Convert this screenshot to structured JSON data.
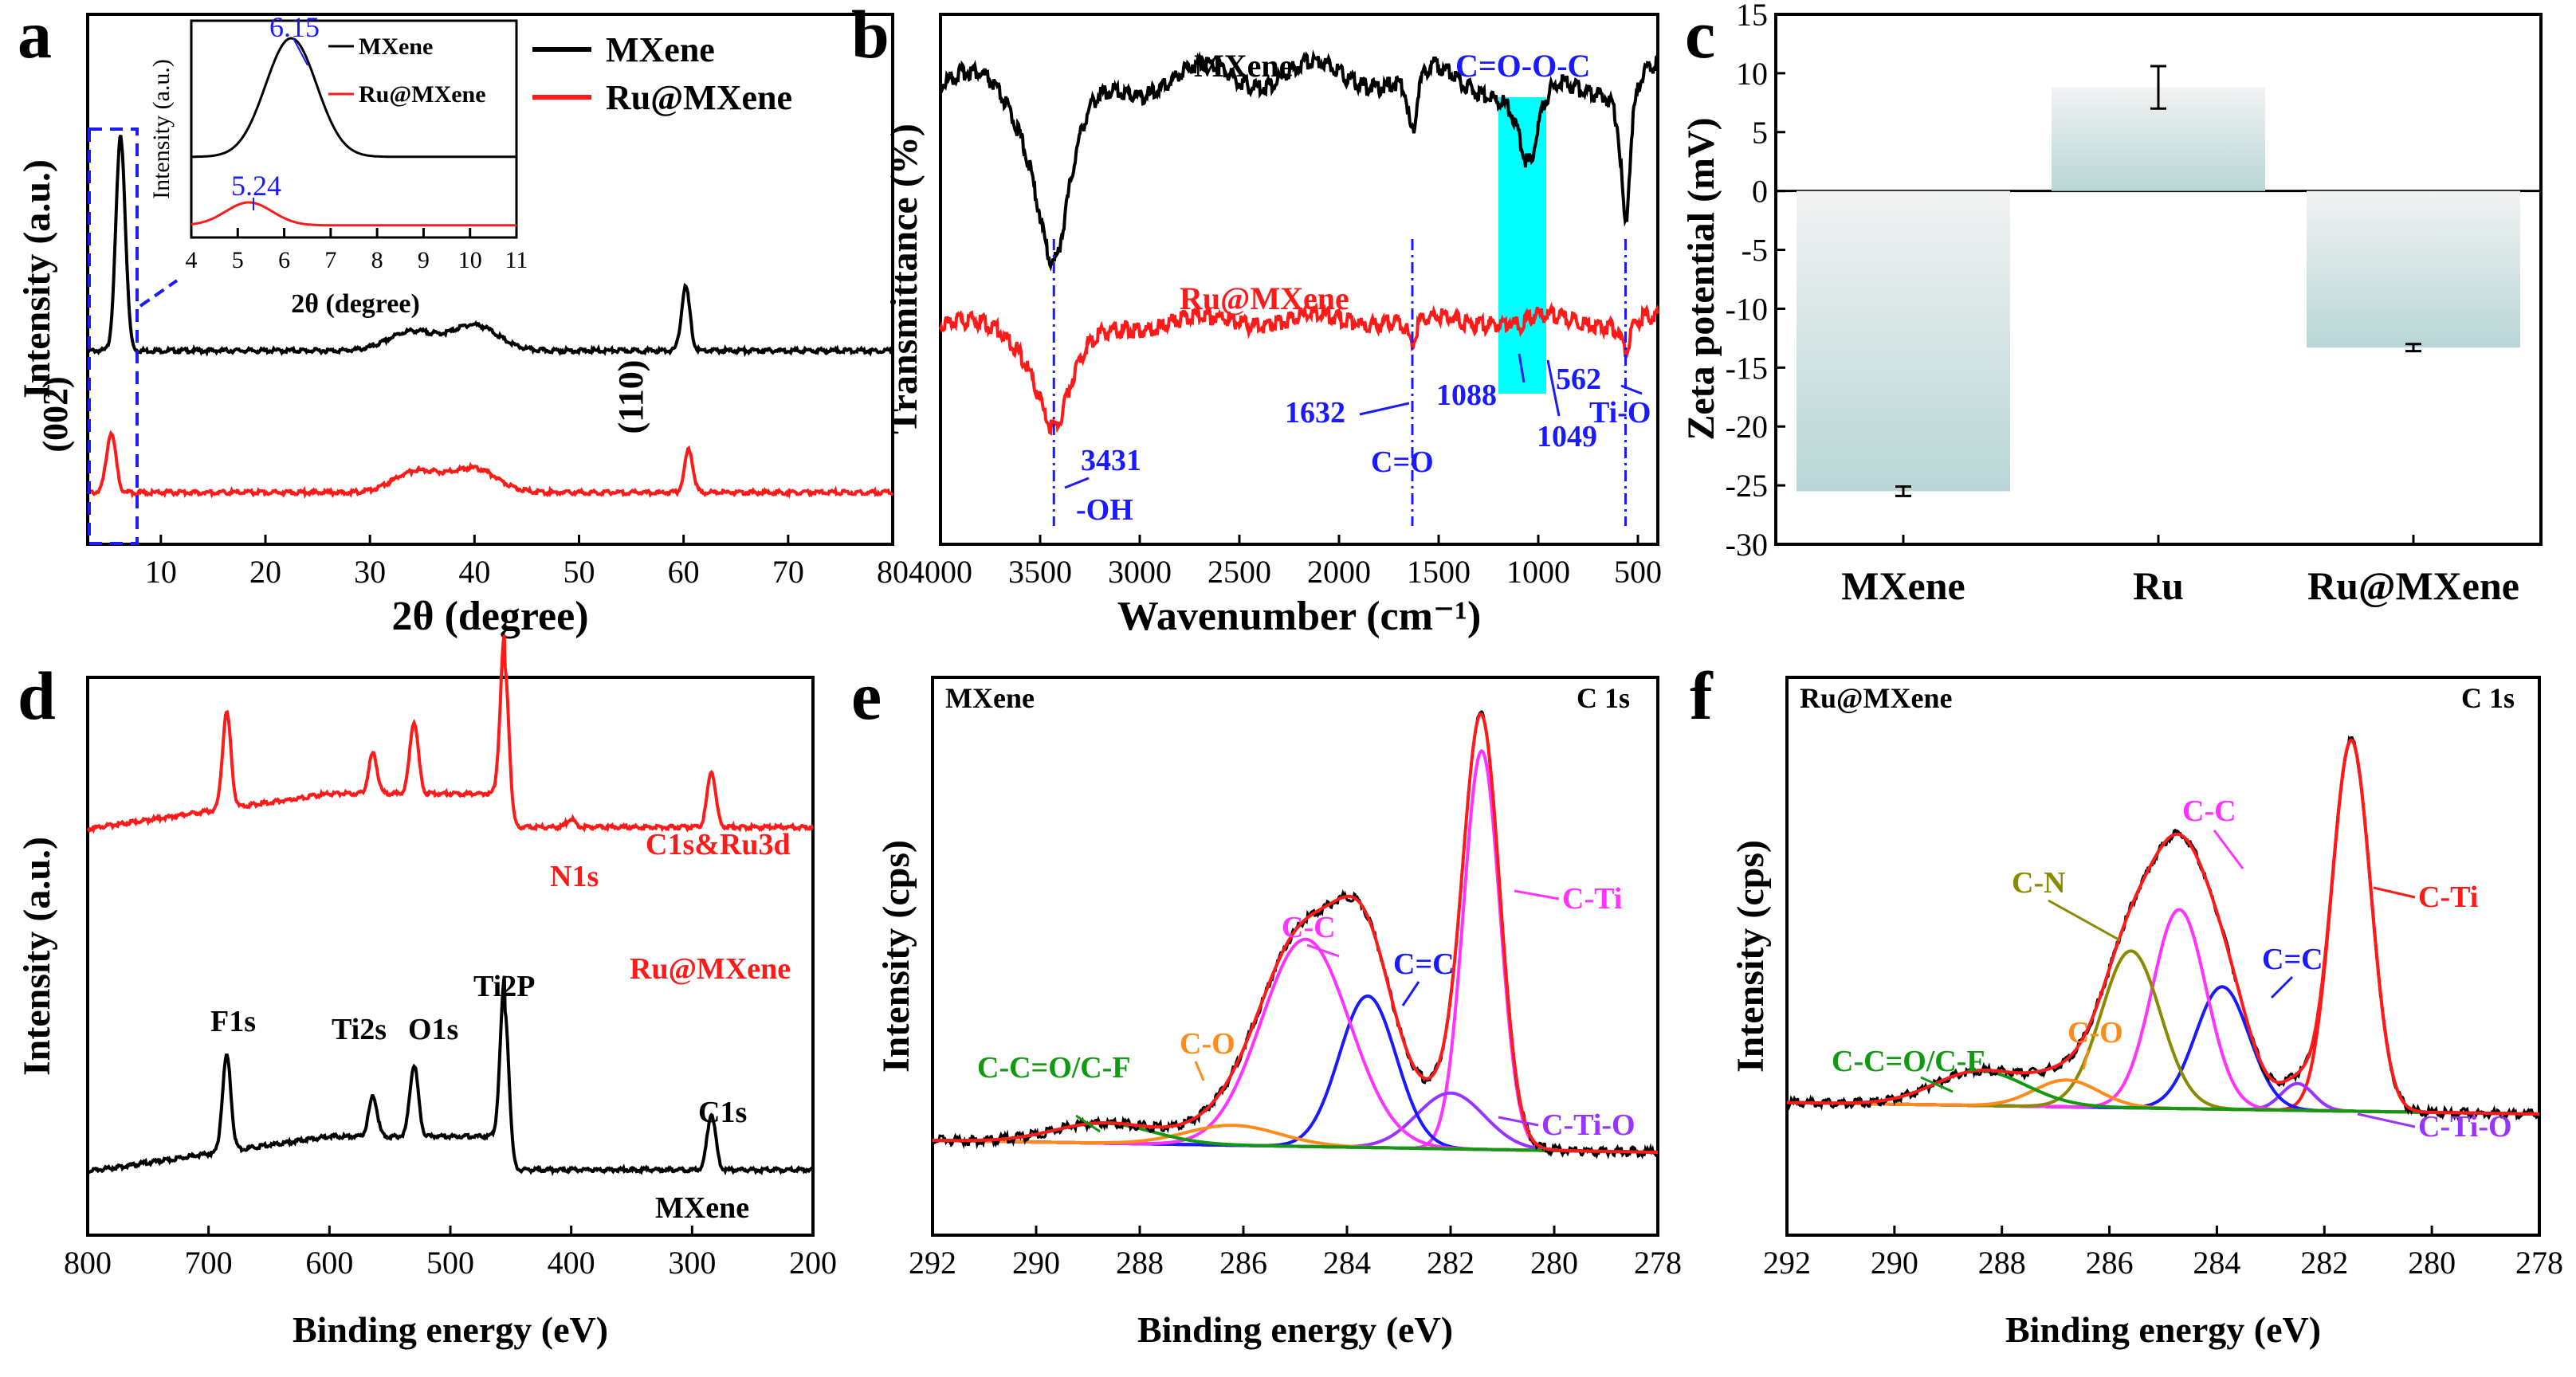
{
  "panels": {
    "a": {
      "letter": "a"
    },
    "b": {
      "letter": "b"
    },
    "c": {
      "letter": "c"
    },
    "d": {
      "letter": "d"
    },
    "e": {
      "letter": "e"
    },
    "f": {
      "letter": "f"
    }
  },
  "colors": {
    "black": "#000000",
    "red": "#ff1a1a",
    "blue": "#1a1aff",
    "cyan": "#00ffff",
    "magenta": "#ff33ff",
    "orange": "#ff8c1a",
    "green": "#119911",
    "olive": "#8a8a00",
    "purple": "#9933ff",
    "brown": "#800000",
    "gray": "#555555",
    "bar": "#b9d6d6"
  },
  "chart_data": [
    {
      "id": "a",
      "type": "line",
      "xlabel": "2θ (degree)",
      "ylabel": "Intensity (a.u.)",
      "xlim": [
        3,
        80
      ],
      "xticks": [
        10,
        20,
        30,
        40,
        50,
        60,
        70,
        80
      ],
      "legend": [
        "MXene",
        "Ru@MXene"
      ],
      "peak_labels": [
        "(002)",
        "(110)"
      ],
      "series": [
        {
          "name": "MXene",
          "color": "#000000",
          "peaks": [
            {
              "x": 6.15,
              "h": 1.0
            },
            {
              "x": 34,
              "h": 0.09
            },
            {
              "x": 40,
              "h": 0.12
            },
            {
              "x": 60.2,
              "h": 0.3
            }
          ]
        },
        {
          "name": "Ru@MXene",
          "color": "#ff1a1a",
          "peaks": [
            {
              "x": 5.24,
              "h": 0.28
            },
            {
              "x": 34.5,
              "h": 0.1
            },
            {
              "x": 40,
              "h": 0.11
            },
            {
              "x": 60.5,
              "h": 0.2
            }
          ]
        }
      ],
      "inset": {
        "xlabel": "2θ (degree)",
        "ylabel": "Intensity (a.u.)",
        "xlim": [
          4,
          11
        ],
        "xticks": [
          4,
          5,
          6,
          7,
          8,
          9,
          10,
          11
        ],
        "legend": [
          "MXene",
          "Ru@MXene"
        ],
        "annotations": [
          "6.15",
          "5.24"
        ]
      }
    },
    {
      "id": "b",
      "type": "line",
      "xlabel": "Wavenumber (cm⁻¹)",
      "ylabel": "Transmittance (%)",
      "xlim": [
        4000,
        400
      ],
      "xticks": [
        4000,
        3500,
        3000,
        2500,
        2000,
        1500,
        1000,
        500
      ],
      "series_labels": [
        "MXene",
        "Ru@MXene"
      ],
      "band_label": "C=O-O-C",
      "band_range": [
        1200,
        960
      ],
      "annotations": [
        "3431",
        "-OH",
        "1632",
        "C=O",
        "1088",
        "1049",
        "562",
        "Ti-O"
      ],
      "series": [
        {
          "name": "MXene",
          "color": "#000000",
          "bands": [
            {
              "x": 3431,
              "d": 0.55
            },
            {
              "x": 1632,
              "d": 0.2
            },
            {
              "x": 1049,
              "d": 0.3
            },
            {
              "x": 562,
              "d": 0.45
            }
          ]
        },
        {
          "name": "Ru@MXene",
          "color": "#ff1a1a",
          "bands": [
            {
              "x": 3431,
              "d": 0.32
            },
            {
              "x": 1632,
              "d": 0.08
            },
            {
              "x": 1088,
              "d": 0.03
            },
            {
              "x": 562,
              "d": 0.1
            }
          ]
        }
      ]
    },
    {
      "id": "c",
      "type": "bar",
      "ylabel": "Zeta potential (mV)",
      "ylim": [
        -30,
        15
      ],
      "yticks": [
        15,
        10,
        5,
        0,
        -5,
        -10,
        -15,
        -20,
        -25,
        -30
      ],
      "categories": [
        "MXene",
        "Ru",
        "Ru@MXene"
      ],
      "values": [
        -25.5,
        8.8,
        -13.3
      ],
      "errors": [
        0.4,
        1.8,
        0.3
      ]
    },
    {
      "id": "d",
      "type": "line",
      "xlabel": "Binding energy (eV)",
      "ylabel": "Intensity (a.u.)",
      "xlim": [
        800,
        200
      ],
      "xticks": [
        800,
        700,
        600,
        500,
        400,
        300,
        200
      ],
      "series_labels": [
        "Ru@MXene",
        "MXene"
      ],
      "peak_labels_red": [
        "C1s&Ru3d",
        "N1s"
      ],
      "peak_labels_black": [
        "F1s",
        "Ti2s",
        "O1s",
        "Ti2P",
        "C1s"
      ],
      "peaks": [
        {
          "name": "F1s",
          "x": 685
        },
        {
          "name": "Ti2s",
          "x": 564
        },
        {
          "name": "O1s",
          "x": 530
        },
        {
          "name": "Ti2P",
          "x": 455
        },
        {
          "name": "N1s",
          "x": 400
        },
        {
          "name": "C1s",
          "x": 284
        }
      ]
    },
    {
      "id": "e",
      "type": "line",
      "title": "MXene",
      "subtitle": "C 1s",
      "xlabel": "Binding energy (eV)",
      "ylabel": "Intensity (cps)",
      "xlim": [
        292,
        278
      ],
      "xticks": [
        292,
        290,
        288,
        286,
        284,
        282,
        280,
        278
      ],
      "components": [
        {
          "name": "C-Ti",
          "center": 281.4,
          "height": 1.0,
          "width": 0.35,
          "color": "#ff33ff"
        },
        {
          "name": "C-Ti-O",
          "center": 282.0,
          "height": 0.14,
          "width": 0.65,
          "color": "#9933ff"
        },
        {
          "name": "C=C",
          "center": 283.6,
          "height": 0.38,
          "width": 0.55,
          "color": "#1a1aff"
        },
        {
          "name": "C-C",
          "center": 284.8,
          "height": 0.52,
          "width": 0.85,
          "color": "#ff33ff"
        },
        {
          "name": "C-O",
          "center": 286.2,
          "height": 0.05,
          "width": 0.9,
          "color": "#ff8c1a"
        },
        {
          "name": "C-C=O/C-F",
          "center": 288.7,
          "height": 0.05,
          "width": 0.95,
          "color": "#119911"
        }
      ]
    },
    {
      "id": "f",
      "type": "line",
      "title": "Ru@MXene",
      "subtitle": "C 1s",
      "xlabel": "Binding energy (eV)",
      "ylabel": "Intensity (cps)",
      "xlim": [
        292,
        278
      ],
      "xticks": [
        292,
        290,
        288,
        286,
        284,
        282,
        280,
        278
      ],
      "components": [
        {
          "name": "C-Ti",
          "center": 281.5,
          "height": 0.97,
          "width": 0.36,
          "color": "#ff1a1a"
        },
        {
          "name": "C-Ti-O",
          "center": 282.5,
          "height": 0.07,
          "width": 0.3,
          "color": "#9933ff"
        },
        {
          "name": "C=C",
          "center": 283.9,
          "height": 0.32,
          "width": 0.5,
          "color": "#1a1aff"
        },
        {
          "name": "C-C",
          "center": 284.7,
          "height": 0.52,
          "width": 0.5,
          "color": "#ff33ff"
        },
        {
          "name": "C-N",
          "center": 285.6,
          "height": 0.41,
          "width": 0.55,
          "color": "#8a8a00"
        },
        {
          "name": "C-O",
          "center": 286.8,
          "height": 0.07,
          "width": 0.6,
          "color": "#ff8c1a"
        },
        {
          "name": "C-C=O/C-F",
          "center": 288.4,
          "height": 0.09,
          "width": 0.85,
          "color": "#119911"
        }
      ]
    }
  ]
}
